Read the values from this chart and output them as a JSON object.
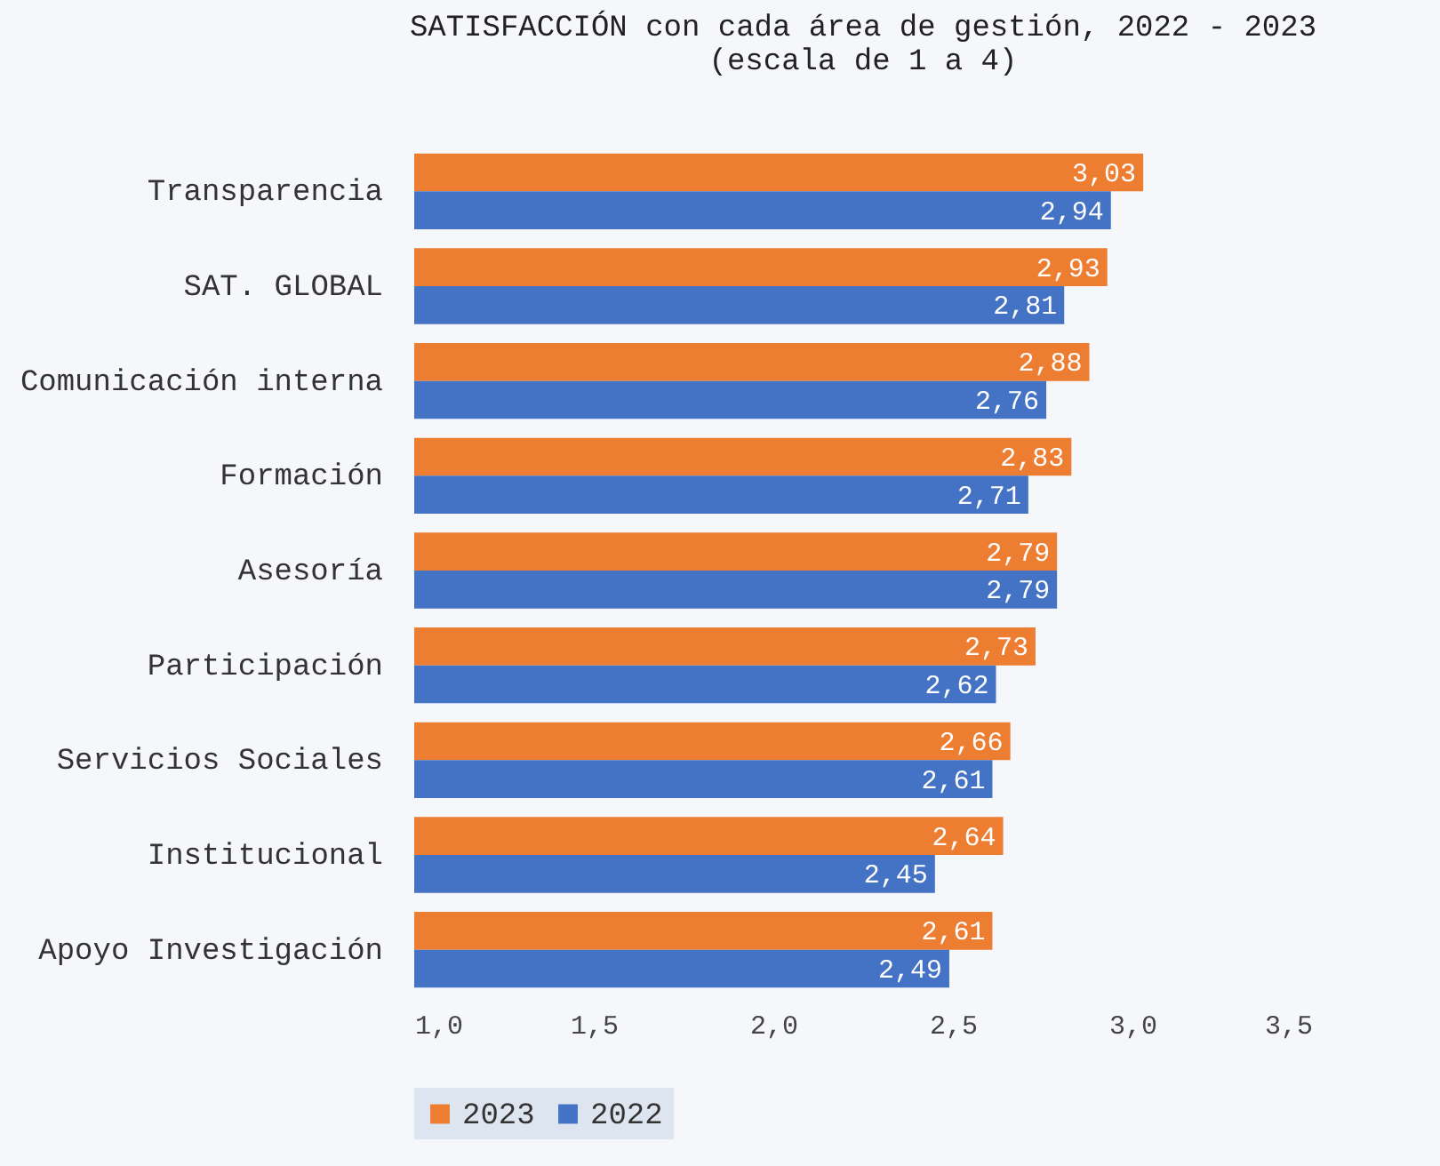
{
  "chart_data": {
    "type": "bar",
    "orientation": "horizontal",
    "title": "SATISFACCIÓN con cada área de gestión, 2022 - 2023",
    "subtitle": "(escala de 1 a 4)",
    "categories": [
      "Transparencia",
      "SAT. GLOBAL",
      "Comunicación interna",
      "Formación",
      "Asesoría",
      "Participación",
      "Servicios Sociales",
      "Institucional",
      "Apoyo Investigación"
    ],
    "series": [
      {
        "name": "2023",
        "color": "#ed7d31",
        "values": [
          3.03,
          2.93,
          2.88,
          2.83,
          2.79,
          2.73,
          2.66,
          2.64,
          2.61
        ],
        "value_labels": [
          "3,03",
          "2,93",
          "2,88",
          "2,83",
          "2,79",
          "2,73",
          "2,66",
          "2,64",
          "2,61"
        ]
      },
      {
        "name": "2022",
        "color": "#4472c4",
        "values": [
          2.94,
          2.81,
          2.76,
          2.71,
          2.79,
          2.62,
          2.61,
          2.45,
          2.49
        ],
        "value_labels": [
          "2,94",
          "2,81",
          "2,76",
          "2,71",
          "2,79",
          "2,62",
          "2,61",
          "2,45",
          "2,49"
        ]
      }
    ],
    "xlim": [
      1,
      3.5
    ],
    "xticks": [
      {
        "value": 1,
        "label": "1,0"
      },
      {
        "value": 1.5,
        "label": "1,5"
      },
      {
        "value": 2,
        "label": "2,0"
      },
      {
        "value": 2.5,
        "label": "2,5"
      },
      {
        "value": 3,
        "label": "3,0"
      },
      {
        "value": 3.5,
        "label": "3,5"
      }
    ],
    "grid": false,
    "legend": "bottom"
  }
}
